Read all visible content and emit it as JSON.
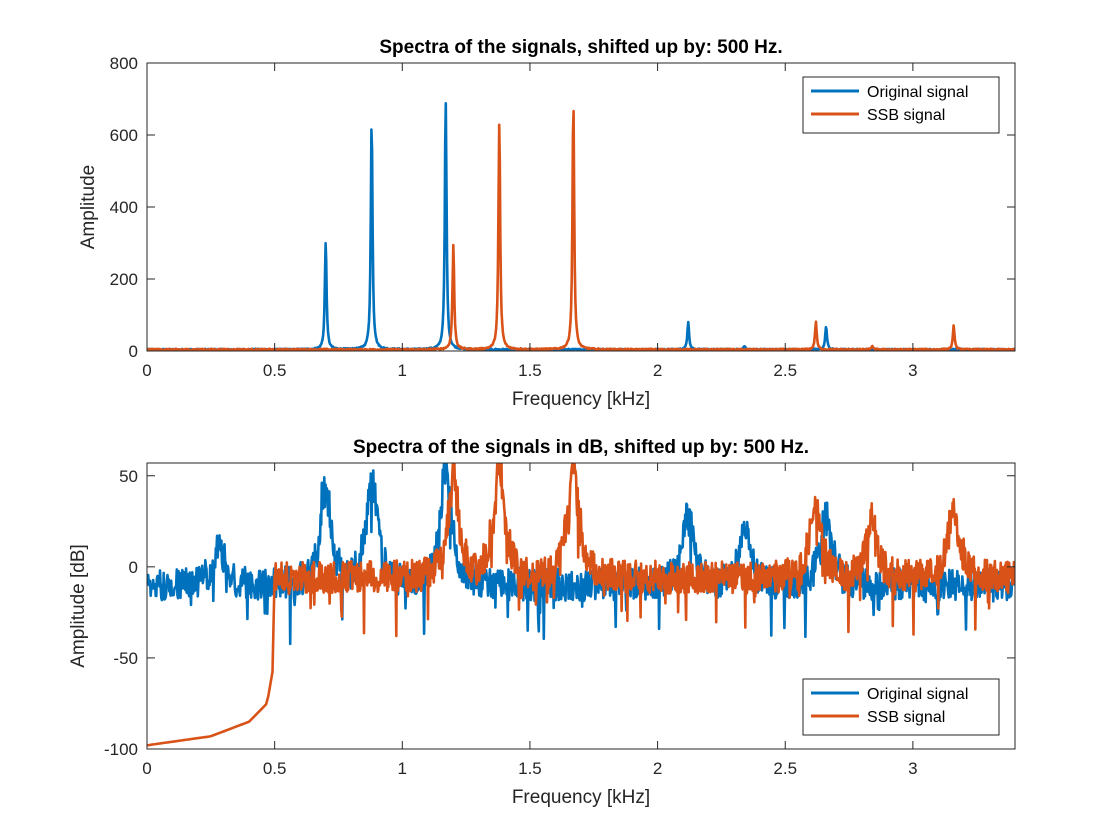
{
  "chart_data": [
    {
      "type": "line",
      "title": "Spectra of the signals, shifted up by: 500 Hz.",
      "xlabel": "Frequency [kHz]",
      "ylabel": "Amplitude",
      "xlim": [
        0,
        3.4
      ],
      "ylim": [
        0,
        800
      ],
      "xticks": [
        0,
        0.5,
        1,
        1.5,
        2,
        2.5,
        3
      ],
      "xtick_labels": [
        "0",
        "0.5",
        "1",
        "1.5",
        "2",
        "2.5",
        "3"
      ],
      "yticks": [
        0,
        200,
        400,
        600,
        800
      ],
      "ytick_labels": [
        "0",
        "200",
        "400",
        "600",
        "800"
      ],
      "grid": false,
      "legend": "top-right",
      "series": [
        {
          "name": "Original signal",
          "color": "#0072BD",
          "baseline": 2,
          "noise": 4,
          "peaks": [
            [
              0.7,
              300
            ],
            [
              0.88,
              638
            ],
            [
              1.17,
              698
            ],
            [
              2.12,
              78
            ],
            [
              2.34,
              10
            ],
            [
              2.66,
              66
            ]
          ]
        },
        {
          "name": "SSB signal",
          "color": "#D95319",
          "baseline": 2,
          "noise": 4,
          "peaks": [
            [
              1.2,
              292
            ],
            [
              1.38,
              636
            ],
            [
              1.67,
              692
            ],
            [
              2.62,
              78
            ],
            [
              2.84,
              10
            ],
            [
              3.16,
              66
            ]
          ]
        }
      ]
    },
    {
      "type": "line",
      "title": "Spectra of the signals in dB, shifted up by: 500 Hz.",
      "xlabel": "Frequency [kHz]",
      "ylabel": "Amplitude [dB]",
      "xlim": [
        0,
        3.4
      ],
      "ylim": [
        -100,
        57
      ],
      "xticks": [
        0,
        0.5,
        1,
        1.5,
        2,
        2.5,
        3
      ],
      "xtick_labels": [
        "0",
        "0.5",
        "1",
        "1.5",
        "2",
        "2.5",
        "3"
      ],
      "yticks": [
        -100,
        -50,
        0,
        50
      ],
      "ytick_labels": [
        "-100",
        "-50",
        "0",
        "50"
      ],
      "grid": false,
      "legend": "bottom-right",
      "series": [
        {
          "name": "Original signal",
          "color": "#0072BD",
          "noise_floor": -10,
          "noise": 9,
          "peaks": [
            [
              0.7,
              48
            ],
            [
              0.88,
              57
            ],
            [
              1.17,
              57
            ],
            [
              2.12,
              34
            ],
            [
              2.34,
              24
            ],
            [
              2.66,
              28
            ],
            [
              0.28,
              13
            ]
          ]
        },
        {
          "name": "SSB signal",
          "color": "#D95319",
          "start": 0.5,
          "noise_floor": -6,
          "noise": 9,
          "rolloff": [
            [
              0,
              -98
            ],
            [
              0.25,
              -93
            ],
            [
              0.4,
              -85
            ],
            [
              0.47,
              -75
            ],
            [
              0.495,
              -55
            ],
            [
              0.5,
              -5
            ]
          ],
          "peaks": [
            [
              1.2,
              48
            ],
            [
              1.38,
              57
            ],
            [
              1.67,
              57
            ],
            [
              2.62,
              37
            ],
            [
              2.84,
              24
            ],
            [
              3.16,
              33
            ]
          ]
        }
      ]
    }
  ]
}
